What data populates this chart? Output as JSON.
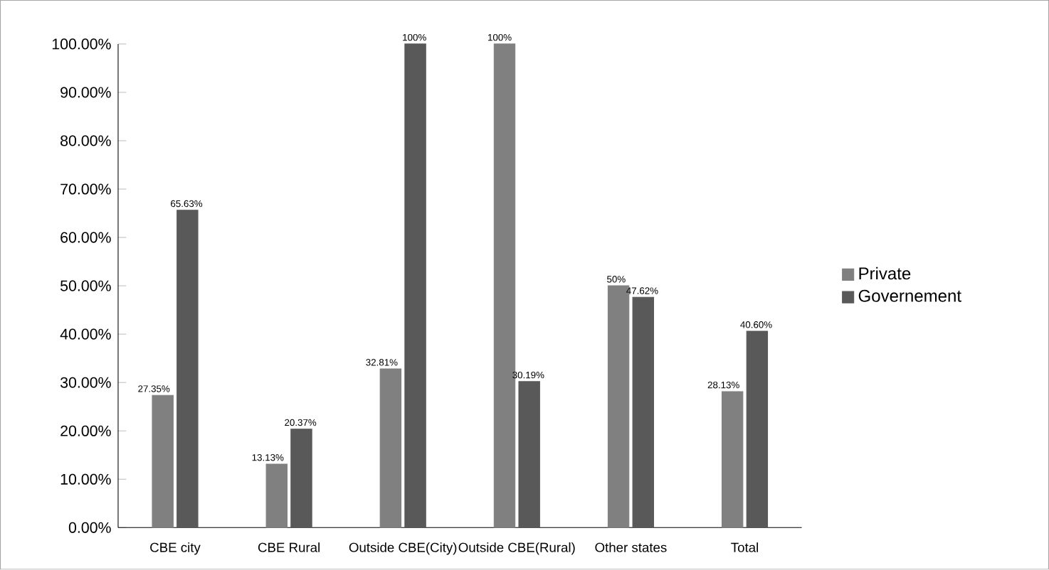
{
  "chart_data": {
    "type": "bar",
    "categories": [
      "CBE city",
      "CBE Rural",
      "Outside CBE(City)",
      "Outside CBE(Rural)",
      "Other states",
      "Total"
    ],
    "series": [
      {
        "name": "Private",
        "color": "#808080",
        "values": [
          27.35,
          13.13,
          32.81,
          100,
          50,
          28.13
        ],
        "value_labels": [
          "27.35%",
          "13.13%",
          "32.81%",
          "100%",
          "50%",
          "28.13%"
        ]
      },
      {
        "name": "Governement",
        "color": "#595959",
        "values": [
          65.63,
          20.37,
          100,
          30.19,
          47.62,
          40.6
        ],
        "value_labels": [
          "65.63%",
          "20.37%",
          "100%",
          "30.19%",
          "47.62%",
          "40.60%"
        ]
      }
    ],
    "ylim": [
      0,
      100
    ],
    "yticks": [
      {
        "value": 0,
        "label": "0.00%"
      },
      {
        "value": 10,
        "label": "10.00%"
      },
      {
        "value": 20,
        "label": "20.00%"
      },
      {
        "value": 30,
        "label": "30.00%"
      },
      {
        "value": 40,
        "label": "40.00%"
      },
      {
        "value": 50,
        "label": "50.00%"
      },
      {
        "value": 60,
        "label": "60.00%"
      },
      {
        "value": 70,
        "label": "70.00%"
      },
      {
        "value": 80,
        "label": "80.00%"
      },
      {
        "value": 90,
        "label": "90.00%"
      },
      {
        "value": 100,
        "label": "100.00%"
      }
    ],
    "legend": "right"
  }
}
